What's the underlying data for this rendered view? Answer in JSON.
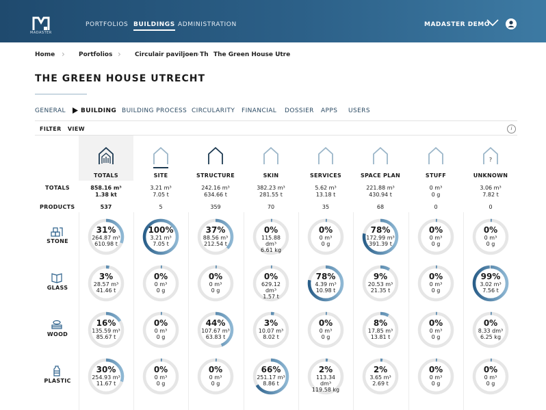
{
  "header": {
    "logo_text": "MADASTER",
    "nav": [
      "PORTFOLIOS",
      "BUILDINGS",
      "ADMINISTRATION"
    ],
    "active_nav": "BUILDINGS",
    "user": "MADASTER DEMO"
  },
  "breadcrumb": [
    "Home",
    "Portfolios",
    "Circulair paviljoen Th",
    "The Green House Utre"
  ],
  "page_title": "THE GREEN HOUSE UTRECHT",
  "tabs": [
    "GENERAL",
    "BUILDING",
    "BUILDING PROCESS",
    "CIRCULARITY",
    "FINANCIAL",
    "DOSSIER",
    "APPS",
    "USERS"
  ],
  "active_tab": "BUILDING",
  "toolbar": {
    "filter": "FILTER",
    "view": "VIEW",
    "info": "i"
  },
  "row_labels": {
    "totals": "TOTALS",
    "products": "PRODUCTS"
  },
  "columns": [
    {
      "label": "TOTALS",
      "total_m3": "858.16 m³",
      "total_t": "1.38 kt",
      "products": "537"
    },
    {
      "label": "SITE",
      "total_m3": "3.21 m³",
      "total_t": "7.05 t",
      "products": "5"
    },
    {
      "label": "STRUCTURE",
      "total_m3": "242.16 m³",
      "total_t": "634.66 t",
      "products": "359"
    },
    {
      "label": "SKIN",
      "total_m3": "382.23 m³",
      "total_t": "281.55 t",
      "products": "70"
    },
    {
      "label": "SERVICES",
      "total_m3": "5.62 m³",
      "total_t": "13.18 t",
      "products": "35"
    },
    {
      "label": "SPACE PLAN",
      "total_m3": "221.88 m³",
      "total_t": "430.94 t",
      "products": "68"
    },
    {
      "label": "STUFF",
      "total_m3": "0 m³",
      "total_t": "0 g",
      "products": "0"
    },
    {
      "label": "UNKNOWN",
      "total_m3": "3.06 m³",
      "total_t": "7.82 t",
      "products": "0"
    }
  ],
  "unknown_symbol": "?",
  "materials": [
    {
      "label": "STONE",
      "cells": [
        {
          "pct": 31,
          "pct_label": "31%",
          "vol": "264.87 m³",
          "mass": "610.98 t"
        },
        {
          "pct": 100,
          "pct_label": "100%",
          "vol": "3.21 m³",
          "mass": "7.05 t"
        },
        {
          "pct": 37,
          "pct_label": "37%",
          "vol": "88.56 m³",
          "mass": "212.54 t"
        },
        {
          "pct": 0,
          "pct_label": "0%",
          "vol": "115.88 dm³",
          "mass": "6.61 kg"
        },
        {
          "pct": 0,
          "pct_label": "0%",
          "vol": "0 m³",
          "mass": "0 g"
        },
        {
          "pct": 78,
          "pct_label": "78%",
          "vol": "172.99 m³",
          "mass": "391.39 t"
        },
        {
          "pct": 0,
          "pct_label": "0%",
          "vol": "0 m³",
          "mass": "0 g"
        },
        {
          "pct": 0,
          "pct_label": "0%",
          "vol": "0 m³",
          "mass": "0 g"
        }
      ]
    },
    {
      "label": "GLASS",
      "cells": [
        {
          "pct": 3,
          "pct_label": "3%",
          "vol": "28.57 m³",
          "mass": "41.46 t"
        },
        {
          "pct": 0,
          "pct_label": "0%",
          "vol": "0 m³",
          "mass": "0 g"
        },
        {
          "pct": 0,
          "pct_label": "0%",
          "vol": "0 m³",
          "mass": "0 g"
        },
        {
          "pct": 0,
          "pct_label": "0%",
          "vol": "629.12 dm³",
          "mass": "1.57 t"
        },
        {
          "pct": 78,
          "pct_label": "78%",
          "vol": "4.39 m³",
          "mass": "10.98 t"
        },
        {
          "pct": 9,
          "pct_label": "9%",
          "vol": "20.53 m³",
          "mass": "21.35 t"
        },
        {
          "pct": 0,
          "pct_label": "0%",
          "vol": "0 m³",
          "mass": "0 g"
        },
        {
          "pct": 99,
          "pct_label": "99%",
          "vol": "3.02 m³",
          "mass": "7.56 t"
        }
      ]
    },
    {
      "label": "WOOD",
      "cells": [
        {
          "pct": 16,
          "pct_label": "16%",
          "vol": "135.59 m³",
          "mass": "85.67 t"
        },
        {
          "pct": 0,
          "pct_label": "0%",
          "vol": "0 m³",
          "mass": "0 g"
        },
        {
          "pct": 44,
          "pct_label": "44%",
          "vol": "107.67 m³",
          "mass": "63.83 t"
        },
        {
          "pct": 3,
          "pct_label": "3%",
          "vol": "10.07 m³",
          "mass": "8.02 t"
        },
        {
          "pct": 0,
          "pct_label": "0%",
          "vol": "0 m³",
          "mass": "0 g"
        },
        {
          "pct": 8,
          "pct_label": "8%",
          "vol": "17.85 m³",
          "mass": "13.81 t"
        },
        {
          "pct": 0,
          "pct_label": "0%",
          "vol": "0 m³",
          "mass": "0 g"
        },
        {
          "pct": 0,
          "pct_label": "0%",
          "vol": "8.33 dm³",
          "mass": "6.25 kg"
        }
      ]
    },
    {
      "label": "PLASTIC",
      "cells": [
        {
          "pct": 30,
          "pct_label": "30%",
          "vol": "254.93 m³",
          "mass": "11.67 t"
        },
        {
          "pct": 0,
          "pct_label": "0%",
          "vol": "0 m³",
          "mass": "0 g"
        },
        {
          "pct": 0,
          "pct_label": "0%",
          "vol": "0 m³",
          "mass": "0 g"
        },
        {
          "pct": 66,
          "pct_label": "66%",
          "vol": "251.17 m³",
          "mass": "8.86 t"
        },
        {
          "pct": 2,
          "pct_label": "2%",
          "vol": "113.34 dm³",
          "mass": "119.58 kg"
        },
        {
          "pct": 2,
          "pct_label": "2%",
          "vol": "3.65 m³",
          "mass": "2.69 t"
        },
        {
          "pct": 0,
          "pct_label": "0%",
          "vol": "0 m³",
          "mass": "0 g"
        },
        {
          "pct": 0,
          "pct_label": "0%",
          "vol": "0 m³",
          "mass": "0 g"
        }
      ]
    }
  ],
  "colors": {
    "header_start": "#1f4a6e",
    "header_end": "#3d7aa3",
    "ring_track": "#e6e6e6",
    "ring_gradient_start": "#2a5f8a",
    "ring_gradient_end": "#8fb8d4",
    "house_stroke": "#1d3a52"
  }
}
